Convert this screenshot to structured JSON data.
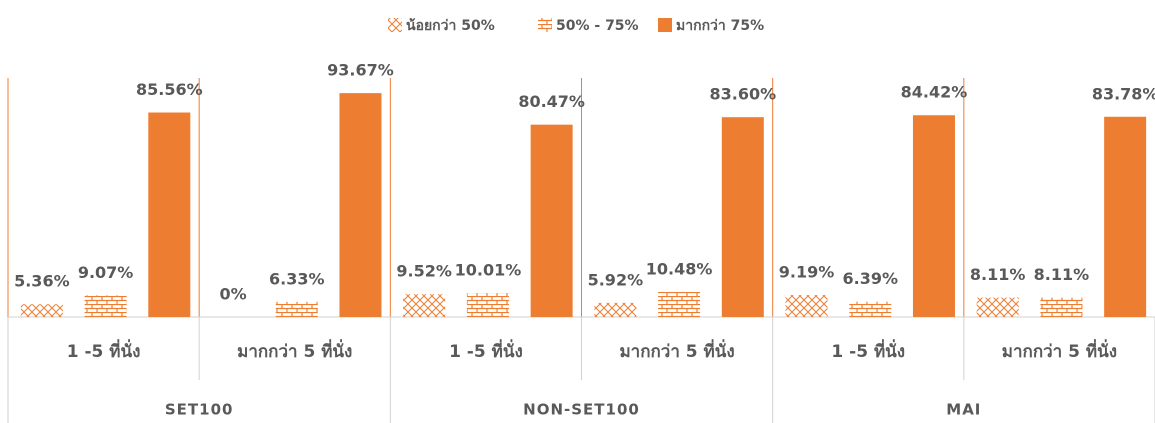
{
  "chart_data": {
    "type": "bar",
    "groups": [
      "SET100",
      "NON-SET100",
      "MAI"
    ],
    "categories": [
      "1 -5 ที่นั่ง",
      "มากกว่า 5 ที่นั่ง",
      "1 -5 ที่นั่ง",
      "มากกว่า 5 ที่นั่ง",
      "1 -5 ที่นั่ง",
      "มากกว่า 5 ที่นั่ง"
    ],
    "series": [
      {
        "name": "น้อยกว่า 50%",
        "color": "#ed7d31",
        "pattern": "zigzag",
        "values": [
          5.36,
          0,
          9.52,
          5.92,
          9.19,
          8.11
        ],
        "value_labels": [
          "5.36%",
          "0%",
          "9.52%",
          "5.92%",
          "9.19%",
          "8.11%"
        ]
      },
      {
        "name": "50% - 75%",
        "color": "#ed7d31",
        "pattern": "brick",
        "values": [
          9.07,
          6.33,
          10.01,
          10.48,
          6.39,
          8.11
        ],
        "value_labels": [
          "9.07%",
          "6.33%",
          "10.01%",
          "10.48%",
          "6.39%",
          "8.11%"
        ]
      },
      {
        "name": "มากกว่า 75%",
        "color": "#ed7d31",
        "pattern": "solid",
        "values": [
          85.56,
          93.67,
          80.47,
          83.6,
          84.42,
          83.78
        ],
        "value_labels": [
          "85.56%",
          "93.67%",
          "80.47%",
          "83.60%",
          "84.42%",
          "83.78%"
        ]
      }
    ],
    "ylim": [
      0,
      100
    ],
    "legend": "top"
  }
}
